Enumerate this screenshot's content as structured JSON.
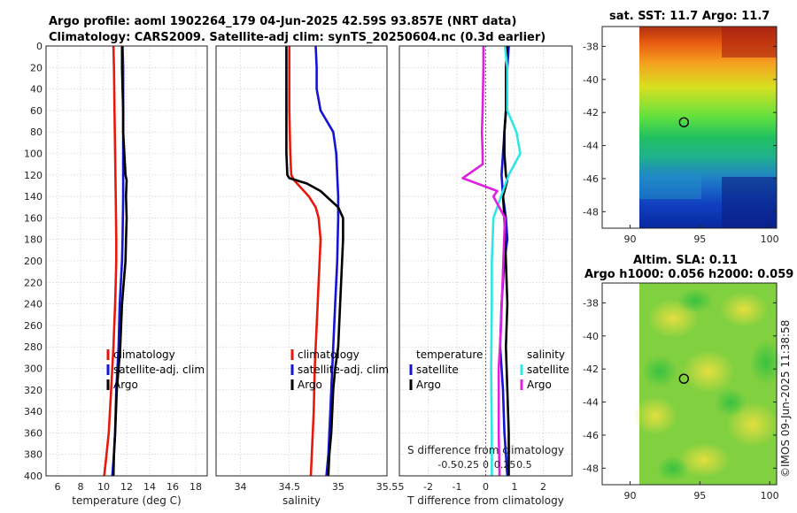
{
  "header": {
    "line1": "Argo profile: aoml 1902264_179 04-Jun-2025 42.59S 93.857E (NRT data)",
    "line2": "Climatology: CARS2009. Satellite-adj clim: synTS_20250604.nc (0.3d earlier)"
  },
  "timestamp": "©IMOS 09-Jun-2025 11:38:58",
  "colors": {
    "climatology": "#e8190c",
    "satellite": "#1414d2",
    "argo": "#000000",
    "sal_satellite": "#2ee6e6",
    "sal_argo": "#e020e0"
  },
  "chart_data": [
    {
      "type": "line",
      "title": "",
      "xlabel": "temperature (deg C)",
      "ylabel": "",
      "xlim": [
        5,
        19
      ],
      "ylim": [
        400,
        0
      ],
      "xticks": [
        6,
        8,
        10,
        12,
        14,
        16,
        18
      ],
      "yticks": [
        0,
        20,
        40,
        60,
        80,
        100,
        120,
        140,
        160,
        180,
        200,
        220,
        240,
        260,
        280,
        300,
        320,
        340,
        360,
        380,
        400
      ],
      "legend": [
        "climatology",
        "satellite-adj. clim",
        "Argo"
      ],
      "series": [
        {
          "name": "climatology",
          "color_key": "climatology",
          "x": [
            10.85,
            10.9,
            10.95,
            11.0,
            11.05,
            11.1,
            11.1,
            11.05,
            11.0,
            10.85,
            10.65,
            10.45,
            10.25,
            10.05
          ],
          "y": [
            0,
            20,
            60,
            100,
            140,
            180,
            200,
            220,
            240,
            280,
            320,
            360,
            380,
            400
          ]
        },
        {
          "name": "satellite-adj. clim",
          "color_key": "satellite",
          "x": [
            11.65,
            11.7,
            11.7,
            11.7,
            11.7,
            11.65,
            11.6,
            11.5,
            11.4,
            11.3,
            11.1,
            11.0,
            10.9,
            10.75
          ],
          "y": [
            0,
            20,
            60,
            100,
            140,
            180,
            200,
            220,
            240,
            280,
            320,
            360,
            380,
            400
          ]
        },
        {
          "name": "Argo",
          "color_key": "argo",
          "x": [
            11.6,
            11.6,
            11.65,
            11.7,
            11.7,
            11.8,
            11.9,
            12.0,
            11.95,
            12.0,
            11.95,
            11.9,
            11.6,
            11.45,
            11.3,
            11.15,
            11.0,
            10.9,
            10.85
          ],
          "y": [
            0,
            20,
            40,
            60,
            80,
            100,
            120,
            125,
            140,
            160,
            180,
            200,
            240,
            280,
            300,
            320,
            360,
            380,
            400
          ]
        }
      ]
    },
    {
      "type": "line",
      "xlabel": "salinity",
      "xlim": [
        33.75,
        35.5
      ],
      "ylim": [
        400,
        0
      ],
      "xticks": [
        34,
        34.5,
        35,
        35.5
      ],
      "legend": [
        "climatology",
        "satellite-adj. clim",
        "Argo"
      ],
      "series": [
        {
          "name": "climatology",
          "color_key": "climatology",
          "x": [
            34.5,
            34.5,
            34.5,
            34.51,
            34.52,
            34.55,
            34.7,
            34.77,
            34.8,
            34.82,
            34.8,
            34.78,
            34.76,
            34.75,
            34.73,
            34.72
          ],
          "y": [
            0,
            20,
            60,
            100,
            120,
            125,
            140,
            150,
            160,
            180,
            220,
            260,
            300,
            340,
            380,
            400
          ]
        },
        {
          "name": "satellite-adj. clim",
          "color_key": "satellite",
          "x": [
            34.77,
            34.78,
            34.78,
            34.82,
            34.95,
            34.98,
            35.0,
            35.0,
            34.99,
            34.97,
            34.95,
            34.93,
            34.91,
            34.9,
            34.88
          ],
          "y": [
            0,
            20,
            40,
            60,
            80,
            100,
            140,
            160,
            200,
            240,
            280,
            320,
            360,
            380,
            400
          ]
        },
        {
          "name": "Argo",
          "color_key": "argo",
          "x": [
            34.47,
            34.47,
            34.47,
            34.47,
            34.48,
            34.5,
            34.68,
            34.82,
            35.0,
            35.05,
            35.05,
            35.04,
            35.02,
            35.0,
            34.97,
            34.95,
            34.93,
            34.91,
            34.9
          ],
          "y": [
            0,
            40,
            80,
            100,
            120,
            123,
            128,
            135,
            150,
            160,
            180,
            200,
            240,
            280,
            300,
            320,
            360,
            380,
            400
          ]
        }
      ]
    },
    {
      "type": "line",
      "xlabel": "T difference from climatology",
      "top_axis_label": "S difference from climatology",
      "xlim": [
        -3,
        3
      ],
      "ylim": [
        400,
        0
      ],
      "xticks": [
        -2,
        -1,
        0,
        1,
        2
      ],
      "xtick_labels": [
        "-2",
        "-1",
        "0",
        "1",
        "2"
      ],
      "top_xticks": [
        -0.5,
        -0.25,
        0,
        0.25,
        0.5
      ],
      "top_xlim": [
        -1.125,
        1.125
      ],
      "zero_line": 0,
      "legend_temperature": {
        "heading": "temperature",
        "items": [
          "satellite",
          "Argo"
        ]
      },
      "legend_salinity": {
        "heading": "salinity",
        "items": [
          "satellite",
          "Argo"
        ]
      },
      "series": [
        {
          "name": "temperature satellite",
          "color_key": "satellite",
          "x": [
            0.8,
            0.75,
            0.7,
            0.7,
            0.65,
            0.6,
            0.55,
            0.6,
            0.7,
            0.75,
            0.65,
            0.55,
            0.5,
            0.6,
            0.65,
            0.7,
            0.75
          ],
          "y": [
            0,
            20,
            40,
            60,
            80,
            100,
            120,
            140,
            160,
            180,
            200,
            240,
            280,
            320,
            360,
            380,
            400
          ]
        },
        {
          "name": "temperature Argo",
          "color_key": "argo",
          "x": [
            0.75,
            0.7,
            0.7,
            0.65,
            0.65,
            0.7,
            0.75,
            0.6,
            0.65,
            0.7,
            0.75,
            0.7,
            0.75,
            0.8,
            0.8,
            0.8
          ],
          "y": [
            0,
            20,
            60,
            80,
            100,
            120,
            125,
            140,
            160,
            200,
            240,
            280,
            320,
            360,
            380,
            400
          ]
        },
        {
          "name": "salinity satellite",
          "color_key": "sal_satellite",
          "x": [
            0.25,
            0.28,
            0.28,
            0.4,
            0.45,
            0.3,
            0.2,
            0.1,
            0.08,
            0.08,
            0.07,
            0.08,
            0.08
          ],
          "y": [
            0,
            20,
            60,
            80,
            100,
            120,
            140,
            160,
            200,
            240,
            300,
            360,
            400
          ]
        },
        {
          "name": "salinity Argo",
          "color_key": "sal_argo",
          "x": [
            -0.03,
            -0.03,
            -0.04,
            -0.05,
            -0.04,
            -0.04,
            -0.3,
            0.15,
            0.1,
            0.25,
            0.23,
            0.2,
            0.17,
            0.17,
            0.18
          ],
          "y": [
            0,
            20,
            60,
            80,
            100,
            110,
            123,
            135,
            140,
            160,
            200,
            260,
            300,
            360,
            400
          ]
        }
      ]
    },
    {
      "type": "heatmap",
      "title": "sat. SST: 11.7 Argo: 11.7",
      "xlim": [
        88,
        100.5
      ],
      "ylim": [
        -49,
        -36.8
      ],
      "xticks": [
        90,
        95,
        100
      ],
      "yticks": [
        -48,
        -46,
        -44,
        -42,
        -40,
        -38
      ],
      "marker": {
        "lon": 93.857,
        "lat": -42.59
      }
    },
    {
      "type": "heatmap",
      "title": "Altim. SLA: 0.11",
      "subtitle": "Argo h1000: 0.056 h2000: 0.059",
      "xlim": [
        88,
        100.5
      ],
      "ylim": [
        -49,
        -36.8
      ],
      "xticks": [
        90,
        95,
        100
      ],
      "yticks": [
        -48,
        -46,
        -44,
        -42,
        -40,
        -38
      ],
      "marker": {
        "lon": 93.857,
        "lat": -42.59
      }
    }
  ]
}
